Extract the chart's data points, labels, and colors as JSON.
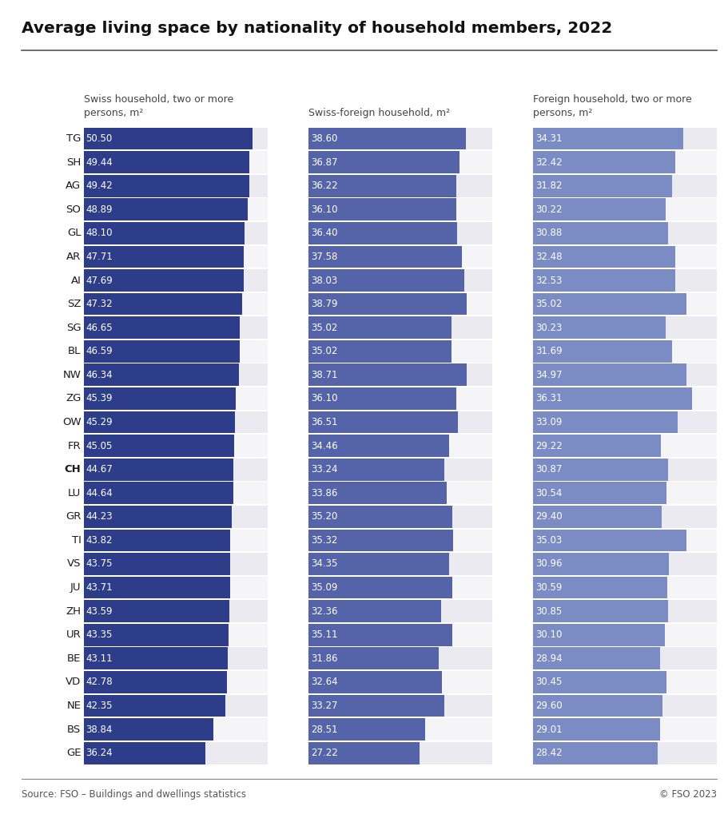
{
  "title": "Average living space by nationality of household members, 2022",
  "source": "Source: FSO – Buildings and dwellings statistics",
  "copyright": "© FSO 2023",
  "col_headers": [
    "Swiss household, two or more\npersons, m²",
    "Swiss-foreign household, m²",
    "Foreign household, two or more\npersons, m²"
  ],
  "cantons": [
    "TG",
    "SH",
    "AG",
    "SO",
    "GL",
    "AR",
    "AI",
    "SZ",
    "SG",
    "BL",
    "NW",
    "ZG",
    "OW",
    "FR",
    "CH",
    "LU",
    "GR",
    "TI",
    "VS",
    "JU",
    "ZH",
    "UR",
    "BE",
    "VD",
    "NE",
    "BS",
    "GE"
  ],
  "ch_bold_index": 14,
  "col1": [
    50.5,
    49.44,
    49.42,
    48.89,
    48.1,
    47.71,
    47.69,
    47.32,
    46.65,
    46.59,
    46.34,
    45.39,
    45.29,
    45.05,
    44.67,
    44.64,
    44.23,
    43.82,
    43.75,
    43.71,
    43.59,
    43.35,
    43.11,
    42.78,
    42.35,
    38.84,
    36.24
  ],
  "col2": [
    38.6,
    36.87,
    36.22,
    36.1,
    36.4,
    37.58,
    38.03,
    38.79,
    35.02,
    35.02,
    38.71,
    36.1,
    36.51,
    34.46,
    33.24,
    33.86,
    35.2,
    35.32,
    34.35,
    35.09,
    32.36,
    35.11,
    31.86,
    32.64,
    33.27,
    28.51,
    27.22
  ],
  "col3": [
    34.31,
    32.42,
    31.82,
    30.22,
    30.88,
    32.48,
    32.53,
    35.02,
    30.23,
    31.69,
    34.97,
    36.31,
    33.09,
    29.22,
    30.87,
    30.54,
    29.4,
    35.03,
    30.96,
    30.59,
    30.85,
    30.1,
    28.94,
    30.45,
    29.6,
    29.01,
    28.42
  ],
  "bar_color_dark": "#2E3D8A",
  "bar_color_mid": "#5563A8",
  "bar_color_light": "#7B8BC4",
  "row_bg_odd": "#EAEAF0",
  "row_bg_even": "#F5F5F8",
  "title_color": "#1a1a1a",
  "text_color_bar": "#FFFFFF",
  "col1_max": 55,
  "col2_max": 45,
  "col3_max": 42
}
